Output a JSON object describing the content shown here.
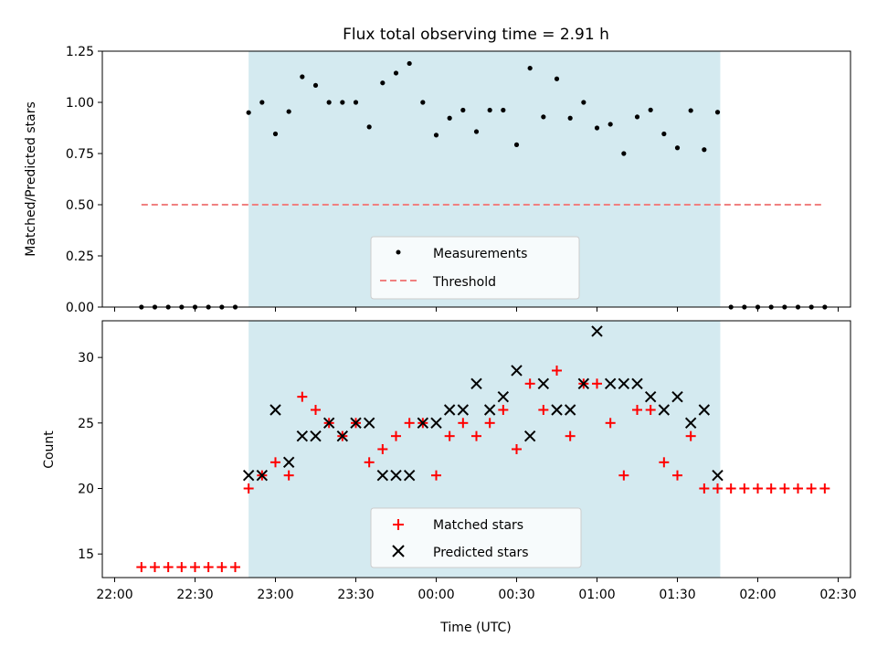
{
  "chart_data": [
    {
      "type": "scatter",
      "title": "Flux total observing time = 2.91 h",
      "ylabel": "Matched/Predicted stars",
      "xlabel": "",
      "xlim": [
        "22:00",
        "02:30"
      ],
      "ylim": [
        0,
        1.25
      ],
      "yticks": [
        "0.00",
        "0.25",
        "0.50",
        "0.75",
        "1.00",
        "1.25"
      ],
      "shaded_region": {
        "start": "22:50",
        "end": "01:46",
        "color": "#d4eaf0"
      },
      "legend": {
        "position": "lower-center",
        "entries": [
          "Measurements",
          "Threshold"
        ]
      },
      "series": [
        {
          "name": "Measurements",
          "marker": "dot",
          "color": "#000000",
          "x": [
            "22:10",
            "22:15",
            "22:20",
            "22:25",
            "22:30",
            "22:35",
            "22:40",
            "22:45",
            "22:50",
            "22:55",
            "23:00",
            "23:05",
            "23:10",
            "23:15",
            "23:20",
            "23:25",
            "23:30",
            "23:35",
            "23:40",
            "23:45",
            "23:50",
            "23:55",
            "00:00",
            "00:05",
            "00:10",
            "00:15",
            "00:20",
            "00:25",
            "00:30",
            "00:35",
            "00:40",
            "00:45",
            "00:50",
            "00:55",
            "01:00",
            "01:05",
            "01:10",
            "01:15",
            "01:20",
            "01:25",
            "01:30",
            "01:35",
            "01:40",
            "01:45",
            "01:50",
            "01:55",
            "02:00",
            "02:05",
            "02:10",
            "02:15",
            "02:20",
            "02:25"
          ],
          "y": [
            0,
            0,
            0,
            0,
            0,
            0,
            0,
            0,
            0.95,
            1.0,
            0.846,
            0.955,
            1.125,
            1.083,
            1.0,
            1.0,
            1.0,
            0.88,
            1.095,
            1.143,
            1.19,
            1.0,
            0.84,
            0.923,
            0.962,
            0.857,
            0.962,
            0.962,
            0.793,
            1.167,
            0.929,
            1.115,
            0.923,
            1.0,
            0.875,
            0.893,
            0.75,
            0.929,
            0.963,
            0.846,
            0.778,
            0.96,
            0.769,
            0.952,
            0,
            0,
            0,
            0,
            0,
            0,
            0,
            0
          ]
        },
        {
          "name": "Threshold",
          "style": "dashed",
          "color": "#f08080",
          "x": [
            "22:10",
            "02:25"
          ],
          "y": [
            0.5,
            0.5
          ]
        }
      ]
    },
    {
      "type": "scatter",
      "title": "",
      "ylabel": "Count",
      "xlabel": "Time (UTC)",
      "xlim": [
        "22:00",
        "02:30"
      ],
      "xticks": [
        "22:00",
        "22:30",
        "23:00",
        "23:30",
        "00:00",
        "00:30",
        "01:00",
        "01:30",
        "02:00",
        "02:30"
      ],
      "ylim": [
        13.2,
        32.8
      ],
      "yticks": [
        "15",
        "20",
        "25",
        "30"
      ],
      "shaded_region": {
        "start": "22:50",
        "end": "01:46",
        "color": "#d4eaf0"
      },
      "legend": {
        "position": "lower-center",
        "entries": [
          "Matched stars",
          "Predicted stars"
        ]
      },
      "series": [
        {
          "name": "Matched stars",
          "marker": "plus",
          "color": "#ff0000",
          "x": [
            "22:10",
            "22:15",
            "22:20",
            "22:25",
            "22:30",
            "22:35",
            "22:40",
            "22:45",
            "22:50",
            "22:55",
            "23:00",
            "23:05",
            "23:10",
            "23:15",
            "23:20",
            "23:25",
            "23:30",
            "23:35",
            "23:40",
            "23:45",
            "23:50",
            "23:55",
            "00:00",
            "00:05",
            "00:10",
            "00:15",
            "00:20",
            "00:25",
            "00:30",
            "00:35",
            "00:40",
            "00:45",
            "00:50",
            "00:55",
            "01:00",
            "01:05",
            "01:10",
            "01:15",
            "01:20",
            "01:25",
            "01:30",
            "01:35",
            "01:40",
            "01:45",
            "01:50",
            "01:55",
            "02:00",
            "02:05",
            "02:10",
            "02:15",
            "02:20",
            "02:25"
          ],
          "y": [
            14,
            14,
            14,
            14,
            14,
            14,
            14,
            14,
            20,
            21,
            22,
            21,
            27,
            26,
            25,
            24,
            25,
            22,
            23,
            24,
            25,
            25,
            21,
            24,
            25,
            24,
            25,
            26,
            23,
            28,
            26,
            29,
            24,
            28,
            28,
            25,
            21,
            26,
            26,
            22,
            21,
            24,
            20,
            20,
            20,
            20,
            20,
            20,
            20,
            20,
            20,
            20
          ]
        },
        {
          "name": "Predicted stars",
          "marker": "x",
          "color": "#000000",
          "x": [
            "22:50",
            "22:55",
            "23:00",
            "23:05",
            "23:10",
            "23:15",
            "23:20",
            "23:25",
            "23:30",
            "23:35",
            "23:40",
            "23:45",
            "23:50",
            "23:55",
            "00:00",
            "00:05",
            "00:10",
            "00:15",
            "00:20",
            "00:25",
            "00:30",
            "00:35",
            "00:40",
            "00:45",
            "00:50",
            "00:55",
            "01:00",
            "01:05",
            "01:10",
            "01:15",
            "01:20",
            "01:25",
            "01:30",
            "01:35",
            "01:40",
            "01:45"
          ],
          "y": [
            21,
            21,
            26,
            22,
            24,
            24,
            25,
            24,
            25,
            25,
            21,
            21,
            21,
            25,
            25,
            26,
            26,
            28,
            26,
            27,
            29,
            24,
            28,
            26,
            26,
            28,
            32,
            28,
            28,
            28,
            27,
            26,
            27,
            25,
            26,
            21
          ]
        }
      ]
    }
  ]
}
